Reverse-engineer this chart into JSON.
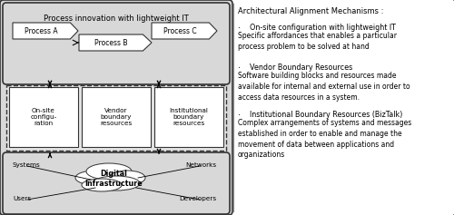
{
  "fig_width": 5.0,
  "fig_height": 2.37,
  "dpi": 100,
  "white": "#ffffff",
  "light_gray": "#d8d8d8",
  "mid_gray": "#c8c8c8",
  "border_color": "#555555",
  "dark_border": "#333333",
  "text_color": "#000000",
  "title_text": "Process innovation with lightweight IT",
  "process_a": "Process A",
  "process_b": "Process B",
  "process_c": "Process C",
  "onsite_text": "On-site\nconfigu-\nration",
  "vendor_text": "Vendor\nboundary\nresources",
  "institutional_text": "Institutional\nboundary\nresources",
  "digital_text": "Digital\nInfrastructure",
  "systems_text": "Systems",
  "networks_text": "Networks",
  "users_text": "Users",
  "developers_text": "Developers",
  "right_title": "Architectural Alignment Mechanisms :",
  "bullet_char": "·",
  "bullet1_title": "  On-site configuration with lightweight IT",
  "bullet1_body": "Specific affordances that enables a particular\nprocess problem to be solved at hand",
  "bullet2_title": "  Vendor Boundary Resources",
  "bullet2_body": "Software building blocks and resources made\navailable for internal and external use in order to\naccess data resources in a system.",
  "bullet3_title": "  Institutional Boundary Resources (BizTalk)",
  "bullet3_body": "Complex arrangements of systems and messages\nestablished in order to enable and manage the\nmovement of data between applications and\norganizations"
}
